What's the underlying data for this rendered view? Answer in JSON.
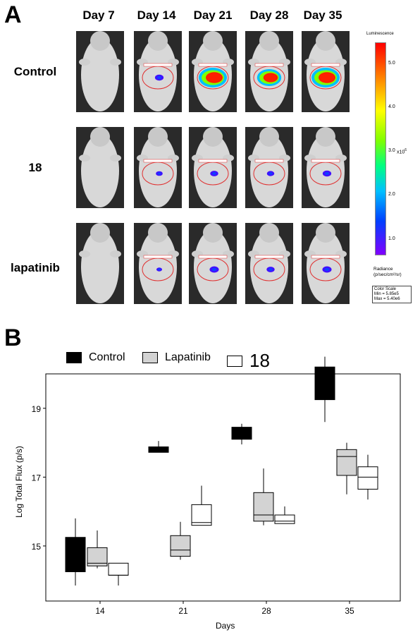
{
  "panel_a": {
    "letter": "A",
    "days": [
      "Day 7",
      "Day 14",
      "Day 21",
      "Day 28",
      "Day 35"
    ],
    "rows": [
      {
        "label": "Control",
        "intensity": [
          0,
          0.3,
          1.0,
          0.8,
          1.0
        ]
      },
      {
        "label": "18",
        "intensity": [
          0,
          0.15,
          0.25,
          0.2,
          0.3
        ]
      },
      {
        "label": "lapatinib",
        "intensity": [
          0,
          0.05,
          0.35,
          0.25,
          0.35
        ]
      }
    ],
    "colorbar": {
      "title": "Luminescence",
      "ticks": [
        "5.0",
        "4.0",
        "3.0",
        "2.0",
        "1.0"
      ],
      "exponent": "x10",
      "exponent_power": "6",
      "radiance_line1": "Radiance",
      "radiance_line2": "(p/sec/cm²/sr)",
      "box_line1": "Color Scale",
      "box_line2": "Min = 5.85e5",
      "box_line3": "Max = 5.40e6"
    }
  },
  "panel_b": {
    "letter": "B",
    "legend": [
      {
        "label": "Control",
        "color": "#000000"
      },
      {
        "label": "Lapatinib",
        "color": "#d3d3d3"
      },
      {
        "label": "18",
        "color": "#ffffff"
      }
    ]
  },
  "chart_data": {
    "type": "box",
    "xlabel": "Days",
    "ylabel": "Log Total Flux (p/s)",
    "categories": [
      "14",
      "21",
      "28",
      "35"
    ],
    "yticks": [
      15,
      17,
      19
    ],
    "ylim": [
      13.4,
      20.0
    ],
    "series": [
      {
        "name": "Control",
        "color": "#000000",
        "boxes": [
          {
            "min": 13.85,
            "q1": 14.25,
            "median": 14.75,
            "q3": 15.25,
            "max": 15.8
          },
          {
            "min": 17.72,
            "q1": 17.72,
            "median": 17.85,
            "q3": 17.88,
            "max": 18.05
          },
          {
            "min": 17.95,
            "q1": 18.1,
            "median": 18.3,
            "q3": 18.45,
            "max": 18.55
          },
          {
            "min": 18.6,
            "q1": 19.25,
            "median": 19.7,
            "q3": 20.2,
            "max": 20.5
          }
        ]
      },
      {
        "name": "Lapatinib",
        "color": "#d3d3d3",
        "boxes": [
          {
            "min": 14.35,
            "q1": 14.42,
            "median": 14.5,
            "q3": 14.95,
            "max": 15.45
          },
          {
            "min": 14.6,
            "q1": 14.7,
            "median": 14.88,
            "q3": 15.3,
            "max": 15.7
          },
          {
            "min": 15.6,
            "q1": 15.72,
            "median": 15.9,
            "q3": 16.55,
            "max": 17.25
          },
          {
            "min": 16.5,
            "q1": 17.05,
            "median": 17.6,
            "q3": 17.8,
            "max": 18.0
          }
        ]
      },
      {
        "name": "18",
        "color": "#ffffff",
        "boxes": [
          {
            "min": 13.85,
            "q1": 14.15,
            "median": 14.15,
            "q3": 14.5,
            "max": 14.5
          },
          {
            "min": 15.6,
            "q1": 15.6,
            "median": 15.68,
            "q3": 16.2,
            "max": 16.75
          },
          {
            "min": 15.65,
            "q1": 15.65,
            "median": 15.72,
            "q3": 15.9,
            "max": 16.15
          },
          {
            "min": 16.35,
            "q1": 16.65,
            "median": 17.0,
            "q3": 17.3,
            "max": 17.65
          }
        ]
      }
    ]
  }
}
